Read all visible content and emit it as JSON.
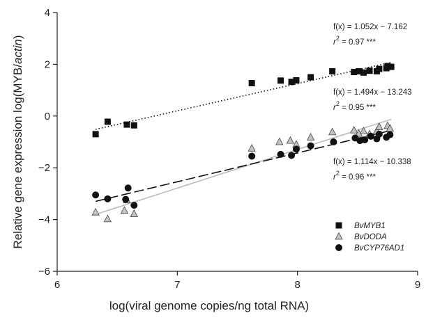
{
  "chart_data": {
    "type": "scatter",
    "xlabel": "log(viral genome copies/ng total RNA)",
    "ylabel_prefix": "Relative gene expression log(MYB/",
    "ylabel_italic": "actin",
    "ylabel_suffix": ")",
    "xlim": [
      6,
      9
    ],
    "ylim": [
      -6,
      4
    ],
    "xticks": [
      6,
      7,
      8,
      9
    ],
    "yticks": [
      -6,
      -4,
      -2,
      0,
      2,
      4
    ],
    "grid": false,
    "legend_position": "bottom-right",
    "series": [
      {
        "name": "BvMYB1",
        "marker": "square",
        "color": "#111111",
        "line_style": "dotted",
        "fit": {
          "slope": 1.052,
          "intercept": -7.162,
          "x_range": [
            6.32,
            8.78
          ]
        },
        "equation": {
          "fx": "f(x) = 1.052x − 7.162",
          "r2_label": "r",
          "r2_value": " = 0.97 ***"
        },
        "x": [
          6.32,
          6.42,
          6.58,
          6.64,
          7.62,
          7.86,
          7.95,
          7.99,
          8.11,
          8.29,
          8.47,
          8.51,
          8.55,
          8.6,
          8.66,
          8.68,
          8.74,
          8.75,
          8.78
        ],
        "y": [
          -0.7,
          -0.22,
          -0.33,
          -0.36,
          1.27,
          1.37,
          1.32,
          1.38,
          1.5,
          1.73,
          1.7,
          1.73,
          1.68,
          1.75,
          1.73,
          1.82,
          1.85,
          1.93,
          1.9
        ]
      },
      {
        "name": "BvDODA",
        "marker": "triangle",
        "color": "#bbbbbb",
        "line_style": "solid",
        "fit": {
          "slope": 1.494,
          "intercept": -13.243,
          "x_range": [
            6.32,
            8.78
          ]
        },
        "equation": {
          "fx": "f(x) = 1.494x − 13.243",
          "r2_label": "r",
          "r2_value": " = 0.95 ***"
        },
        "x": [
          6.32,
          6.42,
          6.56,
          6.58,
          6.64,
          7.62,
          7.85,
          7.94,
          7.99,
          8.11,
          8.29,
          8.47,
          8.51,
          8.55,
          8.6,
          8.66,
          8.68,
          8.75,
          8.77
        ],
        "y": [
          -3.72,
          -3.98,
          -3.65,
          -3.25,
          -3.78,
          -1.25,
          -1.0,
          -0.95,
          -1.1,
          -0.82,
          -0.62,
          -0.55,
          -0.68,
          -0.58,
          -0.7,
          -0.58,
          -0.42,
          -0.38,
          -0.48
        ]
      },
      {
        "name": "BvCYP76AD1",
        "marker": "circle",
        "color": "#111111",
        "line_style": "dashed",
        "fit": {
          "slope": 1.114,
          "intercept": -10.338,
          "x_range": [
            6.32,
            8.78
          ]
        },
        "equation": {
          "fx": "f(x) = 1.114x − 10.338",
          "r2_label": "r",
          "r2_value": " = 0.96 ***"
        },
        "x": [
          6.32,
          6.42,
          6.57,
          6.59,
          6.64,
          7.62,
          7.86,
          7.95,
          7.99,
          8.11,
          8.3,
          8.48,
          8.52,
          8.56,
          8.61,
          8.66,
          8.68,
          8.74,
          8.77
        ],
        "y": [
          -3.05,
          -3.2,
          -3.22,
          -2.78,
          -3.45,
          -1.55,
          -1.48,
          -1.52,
          -1.28,
          -1.15,
          -1.0,
          -0.85,
          -0.95,
          -0.92,
          -0.78,
          -0.88,
          -0.7,
          -0.82,
          -0.72
        ]
      }
    ]
  }
}
